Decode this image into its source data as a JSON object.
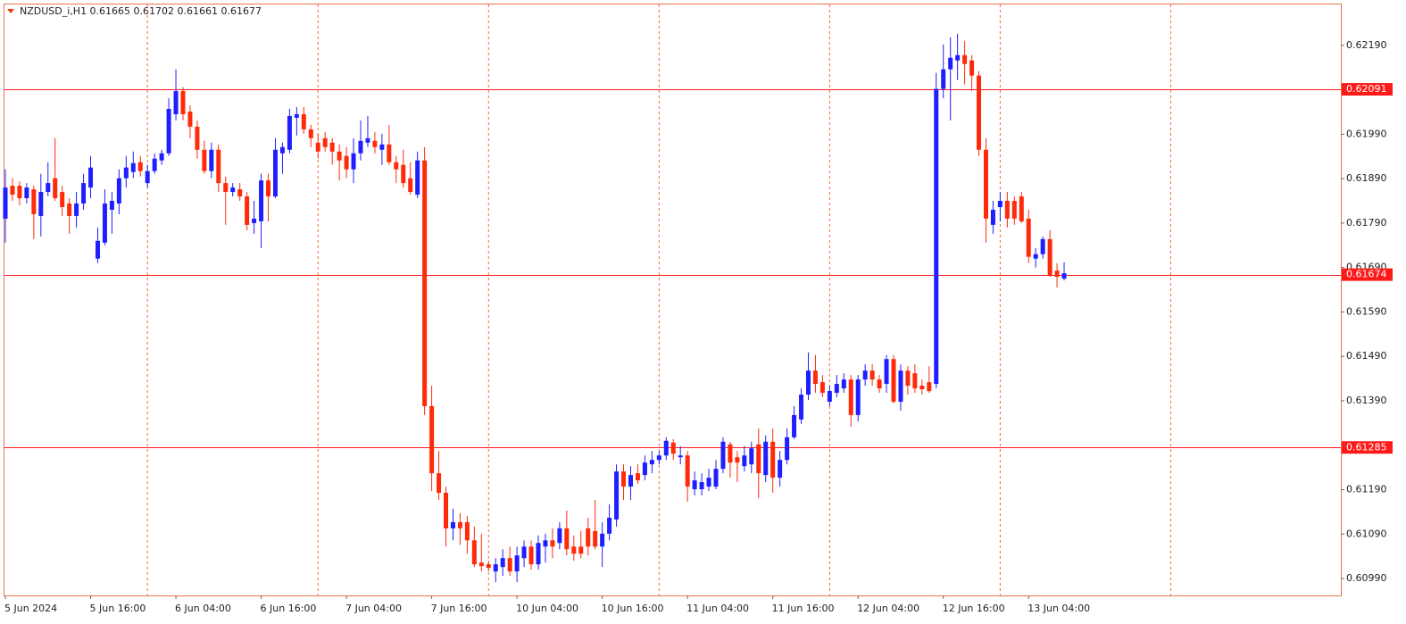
{
  "chart_data": {
    "type": "candlestick",
    "title": "NZDUSD_i,H1  0.61665 0.61702 0.61661 0.61677",
    "categories": [
      "5 Jun 2024",
      null,
      null,
      null,
      null,
      null,
      null,
      null,
      null,
      null,
      null,
      null,
      "5 Jun 16:00",
      null,
      null,
      null,
      null,
      null,
      null,
      null,
      null,
      null,
      null,
      null,
      "6 Jun 04:00",
      null,
      null,
      null,
      null,
      null,
      null,
      null,
      null,
      null,
      null,
      null,
      "6 Jun 16:00",
      null,
      null,
      null,
      null,
      null,
      null,
      null,
      null,
      null,
      null,
      null,
      "7 Jun 04:00",
      null,
      null,
      null,
      null,
      null,
      null,
      null,
      null,
      null,
      null,
      null,
      "7 Jun 16:00",
      null,
      null,
      null,
      null,
      null,
      null,
      null,
      null,
      null,
      null,
      null,
      "10 Jun 04:00",
      null,
      null,
      null,
      null,
      null,
      null,
      null,
      null,
      null,
      null,
      null,
      "10 Jun 16:00",
      null,
      null,
      null,
      null,
      null,
      null,
      null,
      null,
      null,
      null,
      null,
      "11 Jun 04:00",
      null,
      null,
      null,
      null,
      null,
      null,
      null,
      null,
      null,
      null,
      null,
      "11 Jun 16:00",
      null,
      null,
      null,
      null,
      null,
      null,
      null,
      null,
      null,
      null,
      null,
      "12 Jun 04:00",
      null,
      null,
      null,
      null,
      null,
      null,
      null,
      null,
      null,
      null,
      null,
      "12 Jun 16:00",
      null,
      null,
      null,
      null,
      null,
      null,
      null,
      null,
      null,
      null,
      null,
      "13 Jun 04:00",
      null,
      null,
      null,
      null,
      null
    ],
    "open": [
      0.618,
      0.61874,
      0.61874,
      0.61846,
      0.61866,
      0.61806,
      0.6186,
      0.61891,
      0.6186,
      0.61834,
      0.61806,
      0.61834,
      0.6187,
      0.6171,
      0.61746,
      0.6182,
      0.61834,
      0.61891,
      0.61905,
      0.61927,
      0.6188,
      0.61907,
      0.61931,
      0.61947,
      0.62035,
      0.62087,
      0.62041,
      0.62007,
      0.61955,
      0.61907,
      0.61955,
      0.6188,
      0.6186,
      0.61866,
      0.6185,
      0.6179,
      0.61794,
      0.61886,
      0.6185,
      0.61947,
      0.61955,
      0.62027,
      0.62035,
      0.62001,
      0.61971,
      0.61981,
      0.61971,
      0.61951,
      0.61941,
      0.61911,
      0.61947,
      0.61971,
      0.61975,
      0.61955,
      0.61967,
      0.61927,
      0.61921,
      0.61891,
      0.61854,
      0.61931,
      0.61378,
      0.61227,
      0.61183,
      0.61103,
      0.61117,
      0.61117,
      0.61076,
      0.61026,
      0.61022,
      0.61006,
      0.61016,
      0.61036,
      0.61006,
      0.61036,
      0.61062,
      0.61022,
      0.61062,
      0.61076,
      0.6107,
      0.61103,
      0.61062,
      0.61062,
      0.61103,
      0.61097,
      0.61062,
      0.61091,
      0.61123,
      0.61231,
      0.61197,
      0.61227,
      0.61223,
      0.61247,
      0.61257,
      0.61267,
      0.61296,
      0.61263,
      0.61267,
      0.61191,
      0.61191,
      0.61197,
      0.61197,
      0.61237,
      0.61292,
      0.61263,
      0.61243,
      0.61247,
      0.61292,
      0.61223,
      0.61298,
      0.61217,
      0.61257,
      0.61308,
      0.61348,
      0.61404,
      0.61458,
      0.61432,
      0.61388,
      0.61408,
      0.61418,
      0.61438,
      0.61358,
      0.61438,
      0.61458,
      0.61438,
      0.61428,
      0.61484,
      0.61388,
      0.61458,
      0.61452,
      0.61424,
      0.61432,
      0.61428,
      0.62092,
      0.62136,
      0.62156,
      0.62168,
      0.62156,
      0.62122,
      0.61955,
      0.61786,
      0.61826,
      0.6184,
      0.6184,
      0.6185,
      0.618,
      0.6171,
      0.6172,
      0.61754,
      0.61683,
      0.61665
    ],
    "high": [
      0.61911,
      0.61891,
      0.61884,
      0.6188,
      0.61874,
      0.61901,
      0.61927,
      0.61981,
      0.61874,
      0.61846,
      0.6186,
      0.61901,
      0.61941,
      0.6178,
      0.61866,
      0.6186,
      0.61911,
      0.61941,
      0.61951,
      0.61941,
      0.61921,
      0.61947,
      0.61955,
      0.62071,
      0.62136,
      0.62096,
      0.62055,
      0.62021,
      0.61975,
      0.61971,
      0.61967,
      0.61895,
      0.6188,
      0.6188,
      0.6186,
      0.6184,
      0.61901,
      0.61901,
      0.61981,
      0.61971,
      0.62047,
      0.62051,
      0.62051,
      0.62011,
      0.61991,
      0.61995,
      0.61981,
      0.61967,
      0.61961,
      0.61981,
      0.62021,
      0.62031,
      0.61995,
      0.61991,
      0.62011,
      0.61941,
      0.61955,
      0.61927,
      0.61951,
      0.61961,
      0.61424,
      0.61277,
      0.61197,
      0.61147,
      0.61137,
      0.61131,
      0.61107,
      0.61091,
      0.6103,
      0.61036,
      0.61056,
      0.61062,
      0.61062,
      0.61076,
      0.61076,
      0.61087,
      0.61091,
      0.61103,
      0.61117,
      0.61143,
      0.61087,
      0.61097,
      0.61127,
      0.61167,
      0.61117,
      0.61157,
      0.61247,
      0.61247,
      0.61243,
      0.61247,
      0.61267,
      0.61277,
      0.61277,
      0.61308,
      0.61304,
      0.61288,
      0.61277,
      0.61231,
      0.61227,
      0.61237,
      0.61257,
      0.61308,
      0.61298,
      0.61277,
      0.61288,
      0.61298,
      0.61328,
      0.61312,
      0.61328,
      0.61277,
      0.61328,
      0.61378,
      0.61418,
      0.61499,
      0.61493,
      0.61448,
      0.61424,
      0.61448,
      0.61452,
      0.61448,
      0.61448,
      0.61472,
      0.61472,
      0.61448,
      0.61493,
      0.61493,
      0.61472,
      0.61468,
      0.61472,
      0.61438,
      0.61468,
      0.62128,
      0.62192,
      0.62208,
      0.62216,
      0.622,
      0.62168,
      0.62132,
      0.61981,
      0.6184,
      0.6186,
      0.6186,
      0.6185,
      0.6186,
      0.6182,
      0.61734,
      0.6176,
      0.61774,
      0.617,
      0.61702
    ],
    "low": [
      0.61746,
      0.6184,
      0.6183,
      0.61834,
      0.61754,
      0.6176,
      0.6185,
      0.6184,
      0.61806,
      0.61766,
      0.6178,
      0.6182,
      0.61846,
      0.617,
      0.6174,
      0.61766,
      0.6181,
      0.6187,
      0.61891,
      0.61895,
      0.6187,
      0.61901,
      0.61921,
      0.61941,
      0.62021,
      0.62021,
      0.61981,
      0.61935,
      0.61901,
      0.61891,
      0.6186,
      0.61786,
      0.6185,
      0.6184,
      0.61774,
      0.61766,
      0.61734,
      0.61794,
      0.61846,
      0.61901,
      0.61947,
      0.61987,
      0.61991,
      0.61961,
      0.61935,
      0.61951,
      0.61921,
      0.61886,
      0.61891,
      0.6188,
      0.61931,
      0.61961,
      0.61947,
      0.61921,
      0.61921,
      0.6188,
      0.6187,
      0.61854,
      0.61846,
      0.61358,
      0.61187,
      0.61167,
      0.61062,
      0.61076,
      0.61066,
      0.61046,
      0.61016,
      0.61006,
      0.61006,
      0.60982,
      0.60996,
      0.60996,
      0.60982,
      0.61016,
      0.6101,
      0.6101,
      0.61026,
      0.61036,
      0.61056,
      0.61042,
      0.6103,
      0.61036,
      0.61042,
      0.61056,
      0.61016,
      0.61076,
      0.61107,
      0.61167,
      0.61167,
      0.61203,
      0.61211,
      0.61227,
      0.61247,
      0.61257,
      0.61257,
      0.61247,
      0.61163,
      0.61177,
      0.61177,
      0.61187,
      0.61191,
      0.61227,
      0.61217,
      0.61207,
      0.61231,
      0.61227,
      0.61171,
      0.61207,
      0.61183,
      0.61197,
      0.61247,
      0.61304,
      0.61338,
      0.61392,
      0.61408,
      0.61398,
      0.61378,
      0.61398,
      0.61408,
      0.61332,
      0.61344,
      0.61424,
      0.61424,
      0.61408,
      0.61408,
      0.61384,
      0.61368,
      0.61404,
      0.61408,
      0.61404,
      0.61408,
      0.61418,
      0.62071,
      0.62021,
      0.62112,
      0.62102,
      0.62087,
      0.61941,
      0.61746,
      0.61766,
      0.61794,
      0.6178,
      0.61786,
      0.6179,
      0.617,
      0.6169,
      0.6171,
      0.61669,
      0.61645,
      0.61661
    ],
    "close": [
      0.6187,
      0.61854,
      0.61846,
      0.6187,
      0.6181,
      0.6186,
      0.6188,
      0.61846,
      0.61826,
      0.61806,
      0.61834,
      0.6188,
      0.61915,
      0.6175,
      0.61834,
      0.6184,
      0.61891,
      0.61915,
      0.61925,
      0.61907,
      0.61907,
      0.61935,
      0.61947,
      0.62047,
      0.62087,
      0.62035,
      0.62007,
      0.61955,
      0.61907,
      0.61955,
      0.6188,
      0.6186,
      0.6187,
      0.6185,
      0.61786,
      0.618,
      0.61886,
      0.6185,
      0.61955,
      0.61961,
      0.62031,
      0.62035,
      0.62001,
      0.61981,
      0.61951,
      0.61961,
      0.61951,
      0.61931,
      0.61911,
      0.61947,
      0.61975,
      0.61981,
      0.61961,
      0.61967,
      0.61927,
      0.61911,
      0.6188,
      0.6186,
      0.61931,
      0.61378,
      0.61227,
      0.61183,
      0.61103,
      0.61117,
      0.61103,
      0.61076,
      0.61022,
      0.61018,
      0.61014,
      0.61022,
      0.61036,
      0.61006,
      0.61042,
      0.61062,
      0.61022,
      0.6107,
      0.61076,
      0.61062,
      0.61103,
      0.61056,
      0.61046,
      0.61046,
      0.61062,
      0.61062,
      0.61091,
      0.61127,
      0.61231,
      0.61197,
      0.61223,
      0.61211,
      0.61251,
      0.61257,
      0.61267,
      0.613,
      0.61271,
      0.61267,
      0.61197,
      0.61211,
      0.61207,
      0.61217,
      0.61237,
      0.61298,
      0.61251,
      0.61251,
      0.61267,
      0.61283,
      0.61227,
      0.61298,
      0.61217,
      0.61257,
      0.61308,
      0.61358,
      0.61404,
      0.61458,
      0.61428,
      0.61408,
      0.61412,
      0.61428,
      0.61438,
      0.61358,
      0.61438,
      0.61458,
      0.61438,
      0.61418,
      0.61484,
      0.61388,
      0.61458,
      0.61424,
      0.61418,
      0.61416,
      0.61412,
      0.62092,
      0.62136,
      0.62162,
      0.62168,
      0.62148,
      0.62122,
      0.61955,
      0.618,
      0.6182,
      0.6184,
      0.618,
      0.618,
      0.61794,
      0.61714,
      0.6172,
      0.61754,
      0.61673,
      0.61669,
      0.61677
    ],
    "up_color": "#1e1eff",
    "down_color": "#ff2a0a",
    "hline_color": "#ff1a1a",
    "hlines": [
      0.62091,
      0.61674,
      0.61285
    ],
    "ylim": [
      0.60952,
      0.62282
    ],
    "yticks": [
      {
        "value": 0.6219,
        "label": "0.62190"
      },
      {
        "value": 0.6199,
        "label": "0.61990"
      },
      {
        "value": 0.6189,
        "label": "0.61890"
      },
      {
        "value": 0.6179,
        "label": "0.61790"
      },
      {
        "value": 0.6169,
        "label": "0.61690"
      },
      {
        "value": 0.6159,
        "label": "0.61590"
      },
      {
        "value": 0.6149,
        "label": "0.61490"
      },
      {
        "value": 0.6139,
        "label": "0.61390"
      },
      {
        "value": 0.6119,
        "label": "0.61190"
      },
      {
        "value": 0.6109,
        "label": "0.61090"
      },
      {
        "value": 0.6099,
        "label": "0.60990"
      }
    ]
  }
}
